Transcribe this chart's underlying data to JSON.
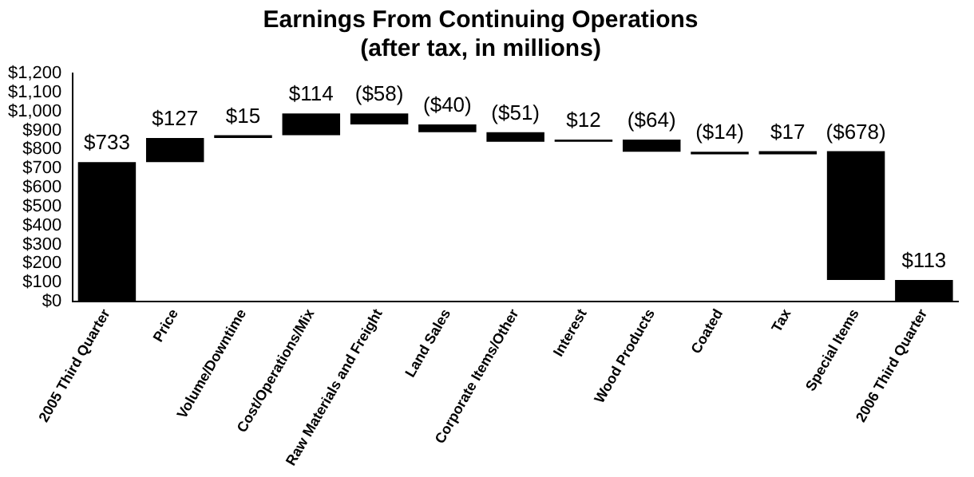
{
  "chart_data": {
    "type": "bar",
    "title": "Earnings From Continuing Operations",
    "subtitle": "(after tax, in millions)",
    "categories": [
      "2005 Third Quarter",
      "Price",
      "Volume/Downtime",
      "Cost/Operations/Mix",
      "Raw Materials and Freight",
      "Land Sales",
      "Corporate Items/Other",
      "Interest",
      "Wood Products",
      "Coated",
      "Tax",
      "Special Items",
      "2006 Third Quarter"
    ],
    "values": [
      733,
      127,
      15,
      114,
      -58,
      -40,
      -51,
      12,
      -64,
      -14,
      17,
      -678,
      113
    ],
    "base": [
      0,
      733,
      860,
      875,
      989,
      931,
      891,
      840,
      852,
      788,
      774,
      791,
      0
    ],
    "value_labels": [
      "$733",
      "$127",
      "$15",
      "$114",
      "($58)",
      "($40)",
      "($51)",
      "$12",
      "($64)",
      "($14)",
      "$17",
      "($678)",
      "$113"
    ],
    "color": "#000000",
    "ylim": [
      0,
      1200
    ],
    "yticks": [
      {
        "value": 0,
        "label": "$0"
      },
      {
        "value": 100,
        "label": "$100"
      },
      {
        "value": 200,
        "label": "$200"
      },
      {
        "value": 300,
        "label": "$300"
      },
      {
        "value": 400,
        "label": "$400"
      },
      {
        "value": 500,
        "label": "$500"
      },
      {
        "value": 600,
        "label": "$600"
      },
      {
        "value": 700,
        "label": "$700"
      },
      {
        "value": 800,
        "label": "$800"
      },
      {
        "value": 900,
        "label": "$900"
      },
      {
        "value": 1000,
        "label": "$1,000"
      },
      {
        "value": 1100,
        "label": "$1,100"
      },
      {
        "value": 1200,
        "label": "$1,200"
      }
    ],
    "grid": false,
    "legend": false
  }
}
